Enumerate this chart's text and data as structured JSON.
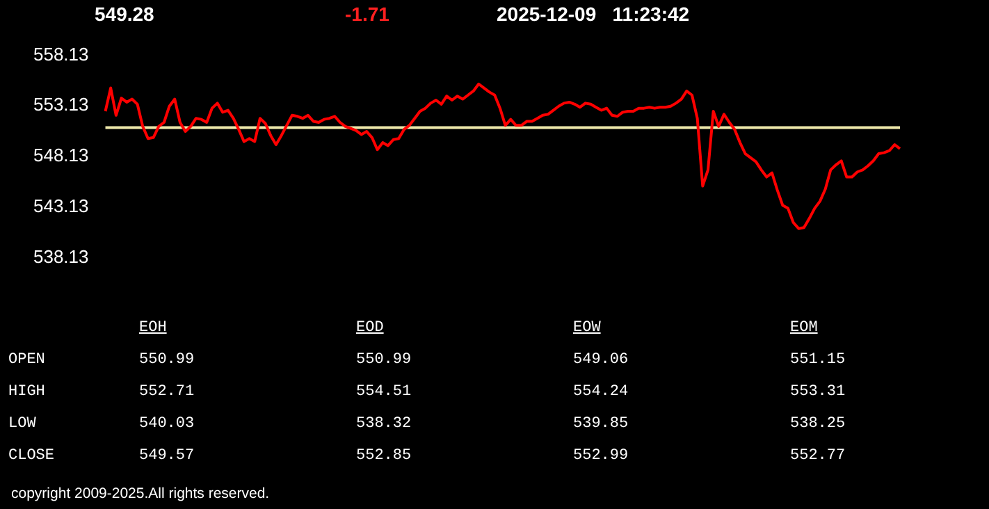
{
  "chart_data": {
    "type": "line",
    "title": "549.28",
    "subtitle": "-1.71",
    "annotations": [
      "2025-12-09   11:23:42",
      "EOH",
      "EOD",
      "EOW",
      "EOM",
      "OPEN",
      "550.99",
      "550.99",
      "549.06",
      "551.15",
      "HIGH",
      "552.71",
      "554.51",
      "554.24",
      "553.31",
      "LOW",
      "540.03",
      "538.32",
      "539.85",
      "538.25",
      "CLOSE",
      "549.57",
      "552.85",
      "552.99",
      "552.77",
      "copyright 2009-2025.All rights reserved."
    ],
    "categories": [
      null,
      null,
      null,
      null,
      null,
      null,
      null,
      null,
      null,
      null,
      null,
      null,
      null,
      null,
      null,
      null,
      null,
      null,
      null,
      null,
      null,
      null,
      null,
      null,
      null,
      null,
      null,
      null,
      null,
      null,
      null,
      null,
      null,
      null,
      null,
      null,
      null,
      null,
      null,
      null,
      null,
      null,
      null,
      null,
      null,
      null,
      null,
      null,
      null,
      null,
      null,
      null,
      null,
      null,
      null,
      null,
      null,
      null,
      null,
      null,
      null,
      null,
      null,
      null,
      null,
      null,
      null,
      null,
      null,
      null,
      null,
      null,
      null,
      null,
      null,
      null,
      null,
      null,
      null,
      null,
      null,
      null,
      null,
      null,
      null,
      null,
      null,
      null,
      null,
      null,
      null,
      null,
      null,
      null,
      null,
      null,
      null,
      null,
      null,
      null,
      null,
      null,
      null,
      null,
      null,
      null,
      null,
      null,
      null,
      null,
      null,
      null,
      null,
      null,
      null,
      null,
      null,
      null,
      null,
      null,
      null,
      null,
      null,
      null,
      null,
      null,
      null,
      null,
      null,
      null,
      null,
      null,
      null,
      null,
      null,
      null,
      null,
      null,
      null,
      null,
      null,
      null,
      null,
      null,
      null,
      null,
      null,
      null,
      null,
      null
    ],
    "series": [
      {
        "color": "#ff0000",
        "values": [
          552.6,
          554.9,
          552.2,
          553.9,
          553.5,
          553.8,
          553.3,
          551.1,
          549.9,
          550.0,
          551.1,
          551.5,
          553.1,
          553.8,
          551.5,
          550.6,
          551.1,
          551.9,
          551.8,
          551.5,
          552.9,
          553.4,
          552.5,
          552.7,
          551.9,
          550.8,
          549.6,
          549.9,
          549.6,
          551.9,
          551.4,
          550.2,
          549.3,
          550.2,
          551.2,
          552.2,
          552.1,
          551.9,
          552.2,
          551.6,
          551.5,
          551.8,
          551.9,
          552.1,
          551.5,
          551.1,
          550.9,
          550.7,
          550.3,
          550.6,
          550.0,
          548.8,
          549.5,
          549.2,
          549.8,
          549.9,
          550.8,
          551.2,
          551.9,
          552.6,
          552.9,
          553.4,
          553.7,
          553.3,
          554.1,
          553.7,
          554.1,
          553.8,
          554.2,
          554.6,
          555.3,
          554.9,
          554.5,
          554.2,
          552.9,
          551.2,
          551.8,
          551.2,
          551.2,
          551.6,
          551.6,
          551.9,
          552.2,
          552.3,
          552.7,
          553.1,
          553.4,
          553.5,
          553.3,
          553.0,
          553.4,
          553.3,
          553.0,
          552.7,
          552.9,
          552.2,
          552.1,
          552.5,
          552.6,
          552.6,
          552.9,
          552.9,
          553.0,
          552.9,
          553.0,
          553.0,
          553.1,
          553.4,
          553.8,
          554.6,
          554.2,
          551.9,
          545.2,
          546.8,
          552.6,
          551.1,
          552.3,
          551.5,
          550.8,
          549.5,
          548.4,
          548.0,
          547.6,
          546.8,
          546.1,
          546.5,
          544.8,
          543.3,
          543.0,
          541.6,
          541.0,
          541.1,
          542.0,
          543.0,
          543.7,
          544.9,
          546.8,
          547.3,
          547.7,
          546.1,
          546.1,
          546.6,
          546.8,
          547.2,
          547.7,
          548.4,
          548.5,
          548.7,
          549.3,
          548.9
        ]
      }
    ],
    "ylim": [
      538.13,
      558.13
    ],
    "yticks": [
      538.13,
      543.13,
      548.13,
      553.13,
      558.13
    ],
    "legend": false,
    "marker": "none",
    "line_style": "solid",
    "tick_labels": "y",
    "ref_lines": [
      {
        "axis": "y",
        "value": 550.99,
        "color": "#eee8aa"
      }
    ]
  }
}
